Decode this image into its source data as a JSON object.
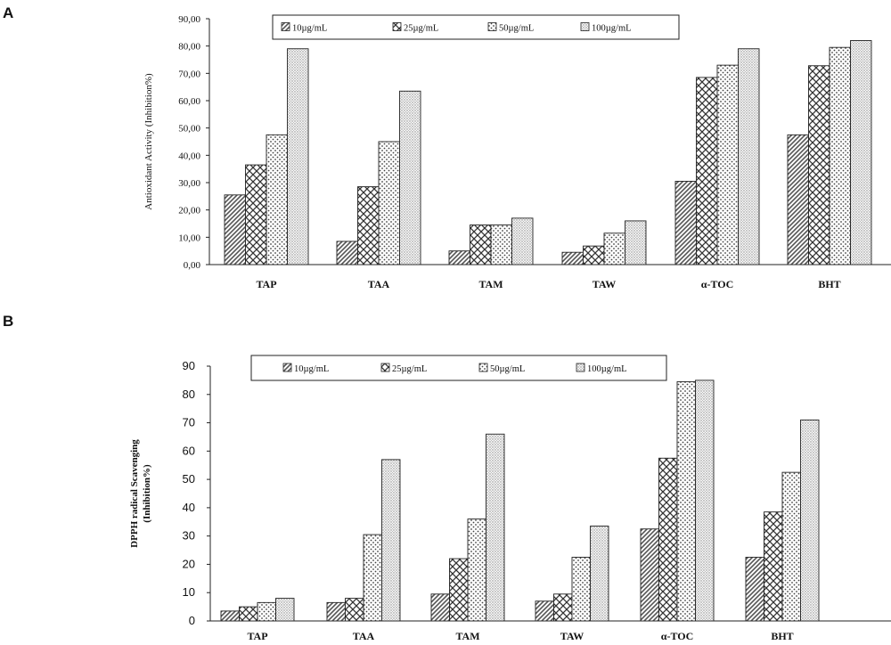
{
  "chart_data": [
    {
      "panel": "A",
      "type": "bar",
      "ylabel": "Antioxidant Activity (Inhibition%)",
      "ylim": [
        0,
        90
      ],
      "ytick_step": 10,
      "ytick_labels": [
        "0,00",
        "10,00",
        "20,00",
        "30,00",
        "40,00",
        "50,00",
        "60,00",
        "70,00",
        "80,00",
        "90,00"
      ],
      "categories": [
        "TAP",
        "TAA",
        "TAM",
        "TAW",
        "α-TOC",
        "BHT"
      ],
      "series": [
        {
          "name": "10µg/mL",
          "values": [
            25.5,
            8.5,
            5.0,
            4.5,
            30.5,
            47.5
          ]
        },
        {
          "name": "25µg/mL",
          "values": [
            36.5,
            28.5,
            14.5,
            6.8,
            68.5,
            72.8
          ]
        },
        {
          "name": "50µg/mL",
          "values": [
            47.5,
            45.0,
            14.5,
            11.5,
            73.0,
            79.5
          ]
        },
        {
          "name": "100µg/mL",
          "values": [
            79.0,
            63.5,
            17.0,
            16.0,
            79.0,
            82.0
          ]
        }
      ],
      "legend": "top"
    },
    {
      "panel": "B",
      "type": "bar",
      "ylabel_lines": [
        "DPPH radical Scavenging",
        "(Inhibition%)"
      ],
      "ylim": [
        0,
        90
      ],
      "ytick_step": 10,
      "ytick_labels": [
        "0",
        "10",
        "20",
        "30",
        "40",
        "50",
        "60",
        "70",
        "80",
        "90"
      ],
      "categories": [
        "TAP",
        "TAA",
        "TAM",
        "TAW",
        "α-TOC",
        "BHT"
      ],
      "series": [
        {
          "name": "10µg/mL",
          "values": [
            3.5,
            6.5,
            9.5,
            7.0,
            32.5,
            22.5
          ]
        },
        {
          "name": "25µg/mL",
          "values": [
            5.0,
            8.0,
            22.0,
            9.5,
            57.5,
            38.5
          ]
        },
        {
          "name": "50µg/mL",
          "values": [
            6.5,
            30.5,
            36.0,
            22.5,
            84.5,
            52.5
          ]
        },
        {
          "name": "100µg/mL",
          "values": [
            8.0,
            57.0,
            66.0,
            33.5,
            85.0,
            71.0
          ]
        }
      ],
      "legend": "top"
    }
  ]
}
